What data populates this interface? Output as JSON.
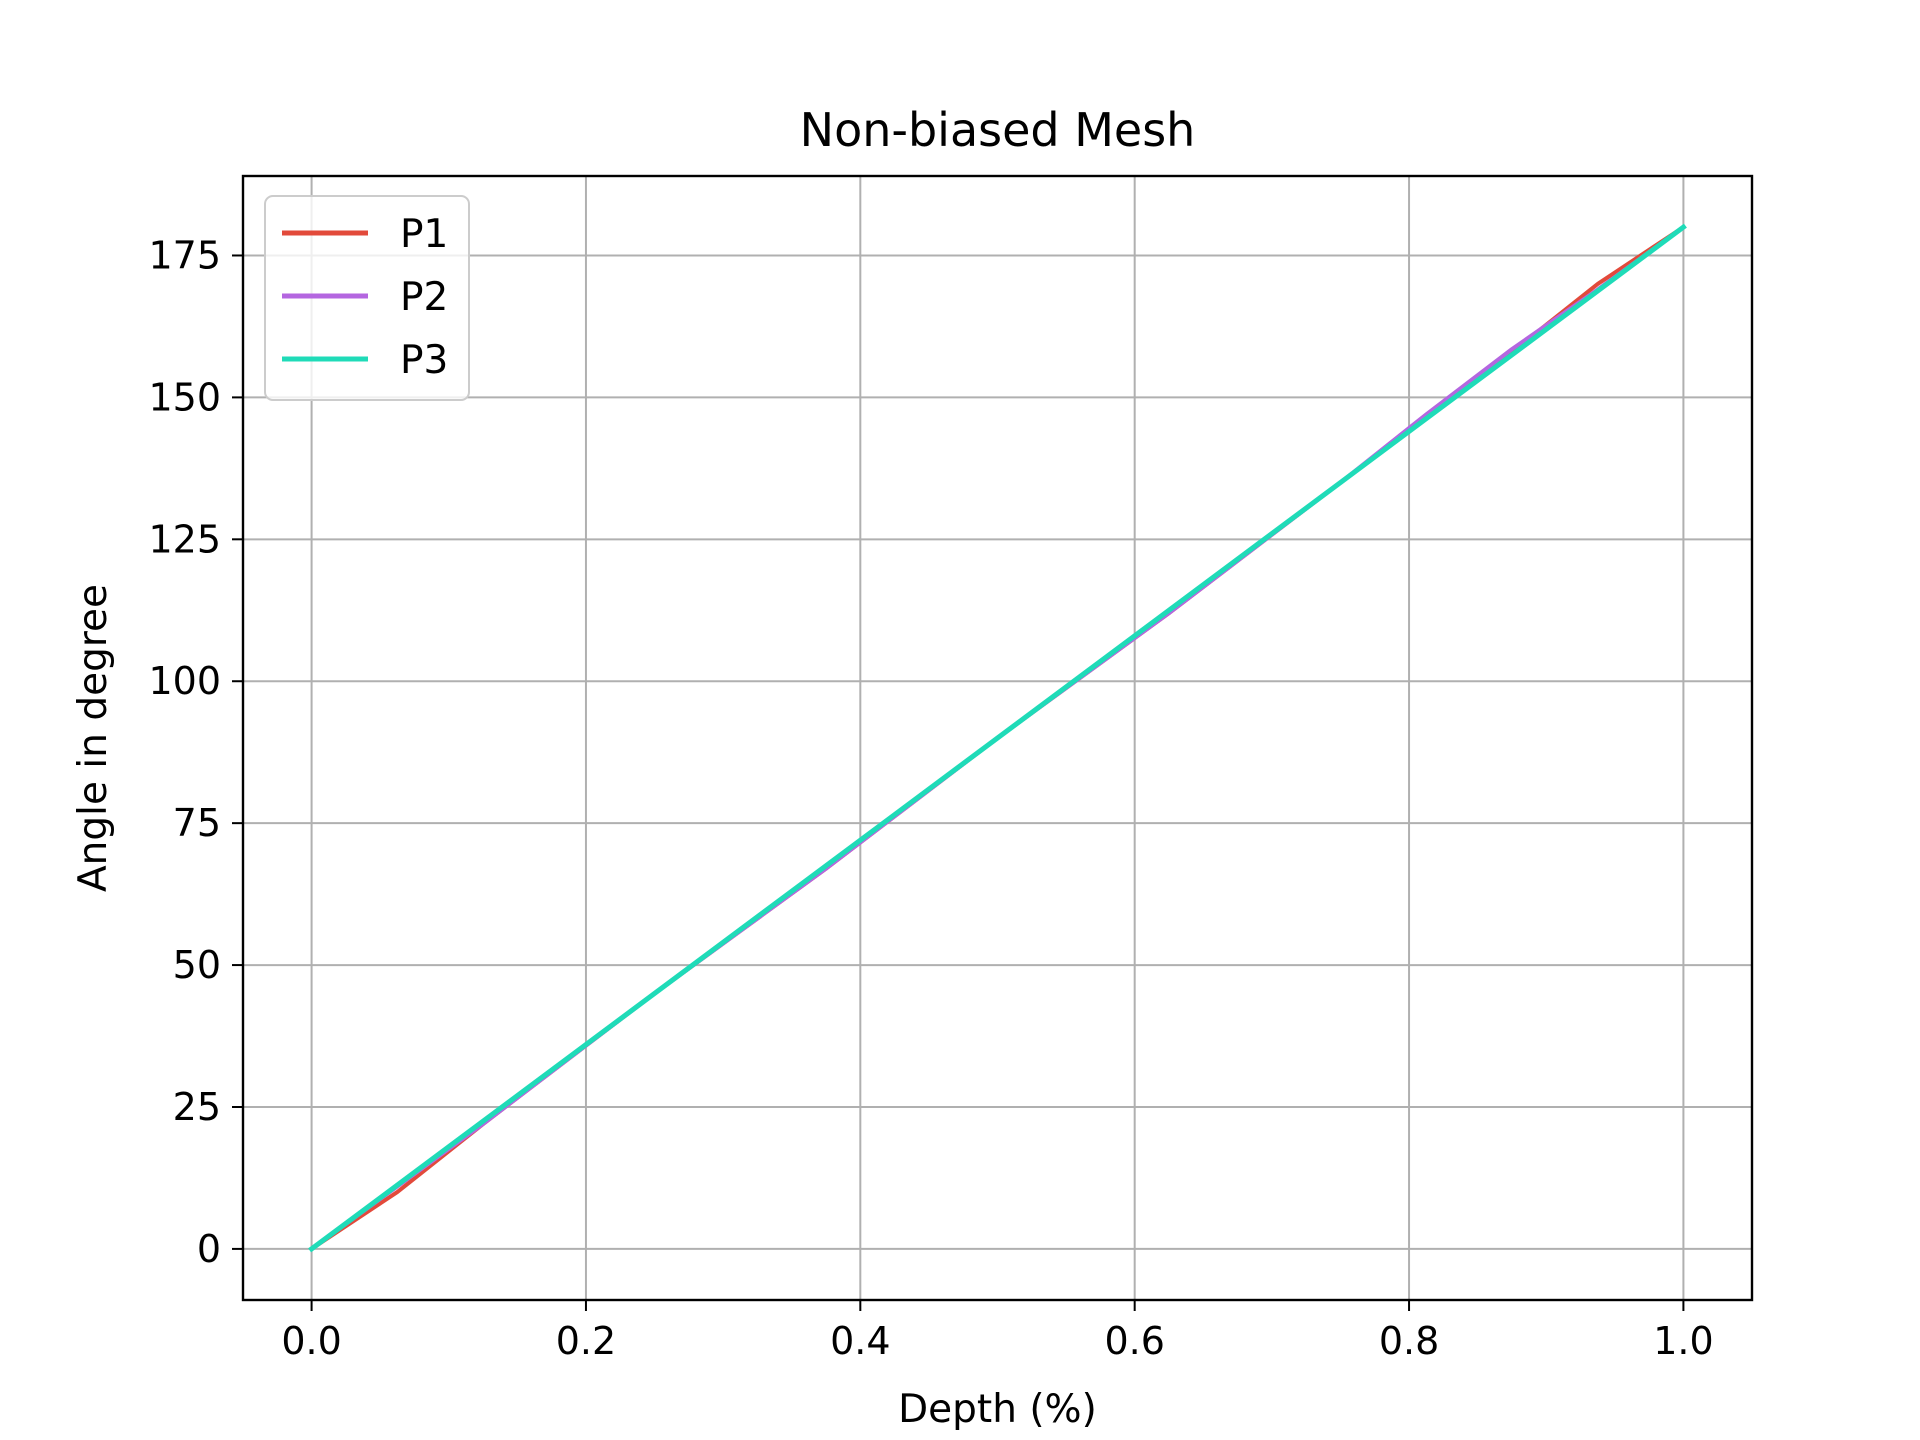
{
  "chart_data": {
    "type": "line",
    "title": "Non-biased Mesh",
    "xlabel": "Depth (%)",
    "ylabel": "Angle in degree",
    "xlim": [
      -0.05,
      1.05
    ],
    "ylim": [
      -9,
      189
    ],
    "xticks": [
      0.0,
      0.2,
      0.4,
      0.6,
      0.8,
      1.0
    ],
    "xtick_labels": [
      "0.0",
      "0.2",
      "0.4",
      "0.6",
      "0.8",
      "1.0"
    ],
    "yticks": [
      0,
      25,
      50,
      75,
      100,
      125,
      150,
      175
    ],
    "ytick_labels": [
      "0",
      "25",
      "50",
      "75",
      "100",
      "125",
      "150",
      "175"
    ],
    "grid": true,
    "legend_position": "top-left",
    "series": [
      {
        "name": "P1",
        "color": "#e24a3b",
        "x": [
          0.0,
          0.0625,
          0.125,
          0.1875,
          0.25,
          0.3125,
          0.375,
          0.4375,
          0.5,
          0.5625,
          0.625,
          0.6875,
          0.75,
          0.8125,
          0.875,
          0.9375,
          1.0
        ],
        "y": [
          0.0,
          10.0,
          22.0,
          33.5,
          45.0,
          56.0,
          67.0,
          78.5,
          90.0,
          101.0,
          112.0,
          123.5,
          135.0,
          146.5,
          158.0,
          170.0,
          180.0
        ]
      },
      {
        "name": "P2",
        "color": "#b466e0",
        "x": [
          0.0,
          0.0625,
          0.125,
          0.1875,
          0.25,
          0.3125,
          0.375,
          0.4375,
          0.5,
          0.5625,
          0.625,
          0.6875,
          0.75,
          0.8125,
          0.875,
          0.9375,
          1.0
        ],
        "y": [
          0.0,
          11.0,
          22.0,
          33.5,
          45.0,
          56.0,
          67.0,
          78.5,
          90.0,
          101.0,
          112.0,
          123.5,
          135.0,
          147.0,
          158.5,
          169.0,
          180.0
        ]
      },
      {
        "name": "P3",
        "color": "#1fdbb8",
        "x": [
          0.0,
          1.0
        ],
        "y": [
          0.0,
          180.0
        ]
      }
    ]
  }
}
